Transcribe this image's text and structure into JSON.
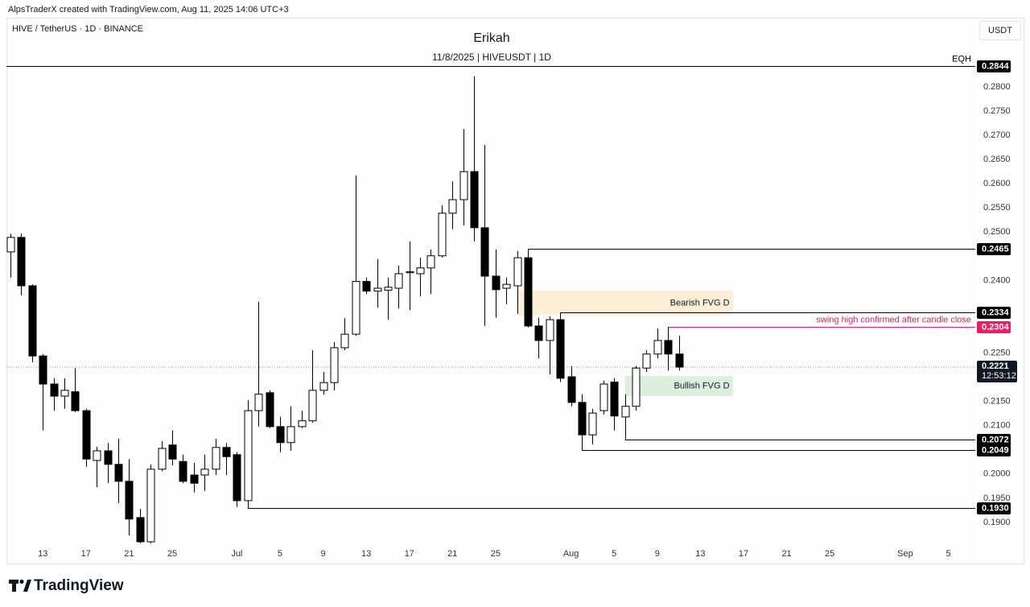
{
  "header": {
    "created": "AlpsTraderX created with TradingView.com, Aug 11, 2025 14:06 UTC+3",
    "symbol": "HIVE / TetherUS · 1D · BINANCE",
    "currency_button": "USDT"
  },
  "chart_data": {
    "type": "candlestick",
    "title": "Erikah",
    "subtitle": "11/8/2025 | HIVEUSDT | 1D",
    "x": [
      "2025-06-10",
      "2025-06-11",
      "2025-06-12",
      "2025-06-13",
      "2025-06-14",
      "2025-06-15",
      "2025-06-16",
      "2025-06-17",
      "2025-06-18",
      "2025-06-19",
      "2025-06-20",
      "2025-06-21",
      "2025-06-22",
      "2025-06-23",
      "2025-06-24",
      "2025-06-25",
      "2025-06-26",
      "2025-06-27",
      "2025-06-28",
      "2025-06-29",
      "2025-06-30",
      "2025-07-01",
      "2025-07-02",
      "2025-07-03",
      "2025-07-04",
      "2025-07-05",
      "2025-07-06",
      "2025-07-07",
      "2025-07-08",
      "2025-07-09",
      "2025-07-10",
      "2025-07-11",
      "2025-07-12",
      "2025-07-13",
      "2025-07-14",
      "2025-07-15",
      "2025-07-16",
      "2025-07-17",
      "2025-07-18",
      "2025-07-19",
      "2025-07-20",
      "2025-07-21",
      "2025-07-22",
      "2025-07-23",
      "2025-07-24",
      "2025-07-25",
      "2025-07-26",
      "2025-07-27",
      "2025-07-28",
      "2025-07-29",
      "2025-07-30",
      "2025-07-31",
      "2025-08-01",
      "2025-08-02",
      "2025-08-03",
      "2025-08-04",
      "2025-08-05",
      "2025-08-06",
      "2025-08-07",
      "2025-08-08",
      "2025-08-09",
      "2025-08-10",
      "2025-08-11"
    ],
    "open": [
      0.2459,
      0.2489,
      0.2389,
      0.2244,
      0.2186,
      0.2161,
      0.217,
      0.2131,
      0.2028,
      0.2048,
      0.202,
      0.1985,
      0.191,
      0.186,
      0.201,
      0.206,
      0.2026,
      0.1998,
      0.1998,
      0.201,
      0.2055,
      0.204,
      0.1945,
      0.2131,
      0.2168,
      0.2098,
      0.2065,
      0.2098,
      0.211,
      0.2173,
      0.2189,
      0.2261,
      0.2289,
      0.2398,
      0.2378,
      0.238,
      0.2384,
      0.2416,
      0.2414,
      0.2426,
      0.2451,
      0.2539,
      0.2567,
      0.2625,
      0.2509,
      0.2409,
      0.2384,
      0.2389,
      0.2447,
      0.2306,
      0.2276,
      0.2319,
      0.2201,
      0.2148,
      0.2081,
      0.2131,
      0.219,
      0.2118,
      0.214,
      0.2219,
      0.2248,
      0.2276,
      0.2248
    ],
    "high": [
      0.2497,
      0.2497,
      0.2392,
      0.2248,
      0.2198,
      0.2198,
      0.2219,
      0.2135,
      0.2056,
      0.2064,
      0.2073,
      0.2031,
      0.1928,
      0.202,
      0.2068,
      0.209,
      0.204,
      0.2023,
      0.204,
      0.2073,
      0.2064,
      0.2045,
      0.2153,
      0.2356,
      0.2173,
      0.2118,
      0.214,
      0.2131,
      0.2256,
      0.2211,
      0.2273,
      0.2322,
      0.2617,
      0.2406,
      0.2444,
      0.2406,
      0.2431,
      0.2481,
      0.2447,
      0.2464,
      0.2555,
      0.2605,
      0.2713,
      0.2822,
      0.268,
      0.2464,
      0.2406,
      0.2461,
      0.2465,
      0.2323,
      0.2326,
      0.2334,
      0.2223,
      0.2165,
      0.2135,
      0.2193,
      0.2198,
      0.2165,
      0.2223,
      0.2256,
      0.2301,
      0.2304,
      0.2286
    ],
    "low": [
      0.2406,
      0.2369,
      0.2231,
      0.209,
      0.2131,
      0.2135,
      0.2128,
      0.2015,
      0.1973,
      0.1981,
      0.194,
      0.1873,
      0.1857,
      0.1857,
      0.2006,
      0.2018,
      0.1981,
      0.1962,
      0.1965,
      0.1998,
      0.1998,
      0.1932,
      0.193,
      0.2098,
      0.2095,
      0.2045,
      0.2048,
      0.2095,
      0.2106,
      0.2164,
      0.2173,
      0.2256,
      0.2286,
      0.2372,
      0.2344,
      0.2319,
      0.2342,
      0.2339,
      0.2367,
      0.2372,
      0.2447,
      0.2506,
      0.2514,
      0.2481,
      0.2306,
      0.2323,
      0.2351,
      0.2331,
      0.2303,
      0.2239,
      0.2206,
      0.219,
      0.214,
      0.2049,
      0.2061,
      0.2123,
      0.209,
      0.2072,
      0.2131,
      0.2211,
      0.2239,
      0.2214,
      0.2214
    ],
    "close": [
      0.2489,
      0.2389,
      0.2244,
      0.2186,
      0.2161,
      0.2173,
      0.2131,
      0.2031,
      0.2048,
      0.202,
      0.1985,
      0.1907,
      0.186,
      0.201,
      0.2053,
      0.2031,
      0.1985,
      0.1981,
      0.201,
      0.2055,
      0.2036,
      0.1945,
      0.2131,
      0.2165,
      0.2098,
      0.2065,
      0.2098,
      0.211,
      0.2173,
      0.2189,
      0.2261,
      0.2289,
      0.2398,
      0.2378,
      0.2384,
      0.2386,
      0.2414,
      0.2418,
      0.2426,
      0.2451,
      0.2539,
      0.2567,
      0.2625,
      0.2509,
      0.2409,
      0.2381,
      0.2392,
      0.2447,
      0.2306,
      0.2276,
      0.2319,
      0.2198,
      0.2148,
      0.2081,
      0.2126,
      0.2186,
      0.212,
      0.214,
      0.2219,
      0.2248,
      0.2276,
      0.2248,
      0.2221
    ],
    "up_color": "#ffffff",
    "down_color": "#000000",
    "xlim": [
      "2025-06-09T15:00:00Z",
      "2025-09-07T12:00:00Z"
    ],
    "ylim": [
      0.1855,
      0.2943
    ],
    "xticks": [
      {
        "value": "2025-06-13",
        "label": "13"
      },
      {
        "value": "2025-06-17",
        "label": "17"
      },
      {
        "value": "2025-06-21",
        "label": "21"
      },
      {
        "value": "2025-06-25",
        "label": "25"
      },
      {
        "value": "2025-07-01",
        "label": "Jul"
      },
      {
        "value": "2025-07-05",
        "label": "5"
      },
      {
        "value": "2025-07-09",
        "label": "9"
      },
      {
        "value": "2025-07-13",
        "label": "13"
      },
      {
        "value": "2025-07-17",
        "label": "17"
      },
      {
        "value": "2025-07-21",
        "label": "21"
      },
      {
        "value": "2025-07-25",
        "label": "25"
      },
      {
        "value": "2025-08-01",
        "label": "Aug"
      },
      {
        "value": "2025-08-05",
        "label": "5"
      },
      {
        "value": "2025-08-09",
        "label": "9"
      },
      {
        "value": "2025-08-13",
        "label": "13"
      },
      {
        "value": "2025-08-17",
        "label": "17"
      },
      {
        "value": "2025-08-21",
        "label": "21"
      },
      {
        "value": "2025-08-25",
        "label": "25"
      },
      {
        "value": "2025-09-01",
        "label": "Sep"
      },
      {
        "value": "2025-09-05",
        "label": "5"
      }
    ],
    "yticks": [
      {
        "value": 0.19,
        "label": "0.1900"
      },
      {
        "value": 0.195,
        "label": "0.1950"
      },
      {
        "value": 0.2,
        "label": "0.2000"
      },
      {
        "value": 0.21,
        "label": "0.2100"
      },
      {
        "value": 0.215,
        "label": "0.2150"
      },
      {
        "value": 0.225,
        "label": "0.2250"
      },
      {
        "value": 0.24,
        "label": "0.2400"
      },
      {
        "value": 0.25,
        "label": "0.2500"
      },
      {
        "value": 0.255,
        "label": "0.2550"
      },
      {
        "value": 0.26,
        "label": "0.2600"
      },
      {
        "value": 0.265,
        "label": "0.2650"
      },
      {
        "value": 0.27,
        "label": "0.2700"
      },
      {
        "value": 0.275,
        "label": "0.2750"
      },
      {
        "value": 0.28,
        "label": "0.2800"
      }
    ],
    "grid": false,
    "levels": [
      {
        "price": 0.2844,
        "note": "EQH",
        "color": "#000000"
      },
      {
        "price": 0.2465,
        "from": "2025-07-28",
        "color": "#000000"
      },
      {
        "price": 0.2334,
        "from": "2025-07-31",
        "color": "#000000"
      },
      {
        "price": 0.2304,
        "from": "2025-08-10",
        "note": "swing high confirmed after candle close",
        "color": "#e91e63"
      },
      {
        "price": 0.2072,
        "from": "2025-08-06",
        "color": "#000000"
      },
      {
        "price": 0.2049,
        "from": "2025-08-02",
        "color": "#000000"
      },
      {
        "price": {
          "value": 0.193,
          "label": "0.1930"
        },
        "from": "2025-07-02",
        "color": "#000000"
      }
    ],
    "current_price": {
      "price": 0.2221,
      "countdown": "12:53:12",
      "color": "#9c6ade"
    },
    "zones": [
      {
        "label": "Bearish FVG D",
        "from": "2025-07-27",
        "to": "2025-08-16",
        "top": 0.2379,
        "bottom": 0.2328,
        "color": "#fcefd6"
      },
      {
        "label": "Bullish FVG D",
        "from": "2025-08-06",
        "to": "2025-08-16",
        "top": 0.2203,
        "bottom": 0.2161,
        "color": "#dcefdd"
      }
    ]
  },
  "footer": {
    "brand": "TradingView"
  }
}
